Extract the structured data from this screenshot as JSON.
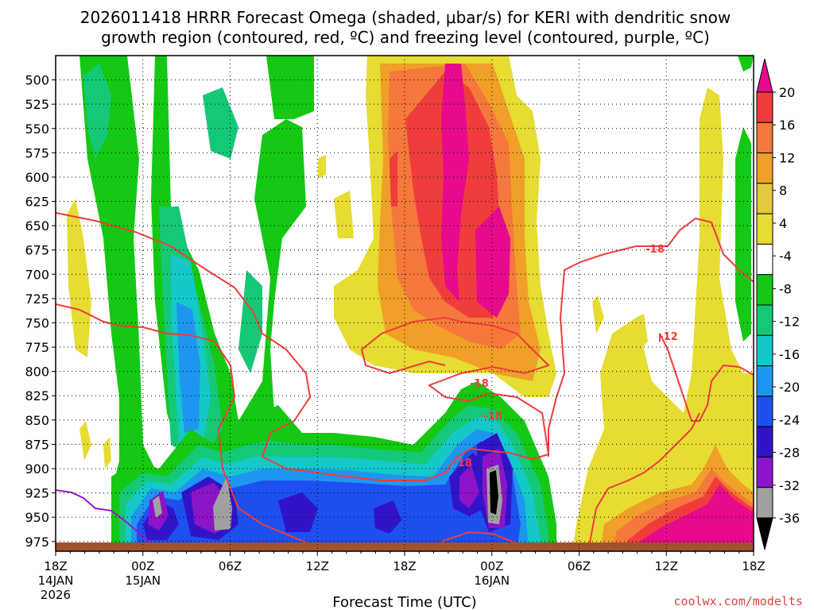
{
  "chart_data": {
    "type": "time-height contour",
    "title_line1": "2026011418 HRRR Forecast Omega (shaded, μbar/s) for KERI with dendritic snow",
    "title_line2": "growth region (contoured, red, ºC) and freezing level (contoured, purple, ºC)",
    "xlabel": "Forecast Time (UTC)",
    "credit": "coolwx.com/modelts",
    "y_levels": [
      "500",
      "525",
      "550",
      "575",
      "600",
      "625",
      "650",
      "675",
      "700",
      "725",
      "750",
      "775",
      "800",
      "825",
      "850",
      "875",
      "900",
      "925",
      "950",
      "975"
    ],
    "ylim": [
      475,
      985
    ],
    "x_ticks": [
      {
        "hour": 0,
        "label": "18Z",
        "sub1": "14JAN",
        "sub2": "2026"
      },
      {
        "hour": 6,
        "label": "00Z",
        "sub1": "15JAN",
        "sub2": ""
      },
      {
        "hour": 12,
        "label": "06Z",
        "sub1": "",
        "sub2": ""
      },
      {
        "hour": 18,
        "label": "12Z",
        "sub1": "",
        "sub2": ""
      },
      {
        "hour": 24,
        "label": "18Z",
        "sub1": "",
        "sub2": ""
      },
      {
        "hour": 30,
        "label": "00Z",
        "sub1": "16JAN",
        "sub2": ""
      },
      {
        "hour": 36,
        "label": "06Z",
        "sub1": "",
        "sub2": ""
      },
      {
        "hour": 42,
        "label": "12Z",
        "sub1": "",
        "sub2": ""
      },
      {
        "hour": 48,
        "label": "18Z",
        "sub1": "",
        "sub2": ""
      }
    ],
    "xlim": [
      0,
      48
    ],
    "colorbar": {
      "labels": [
        "20",
        "16",
        "12",
        "8",
        "4",
        "-4",
        "-8",
        "-12",
        "-16",
        "-20",
        "-24",
        "-28",
        "-32",
        "-36"
      ],
      "colors_top_to_bottom": [
        "#e60a8c",
        "#f03c3c",
        "#f5783c",
        "#f0a028",
        "#e6c83c",
        "#e6dc32",
        "#ffffff",
        "#14c814",
        "#14c878",
        "#14c8c8",
        "#1e96f0",
        "#1e50f0",
        "#3214c8",
        "#8c14c8",
        "#a0a0a0",
        "#000000"
      ]
    },
    "contour_labels": [
      "-18",
      "-12",
      "-18",
      "-18",
      "-18"
    ],
    "colors": {
      "freezing": "#a014c8",
      "dgz": "#f03c3c",
      "ground": "#a0522d"
    }
  }
}
